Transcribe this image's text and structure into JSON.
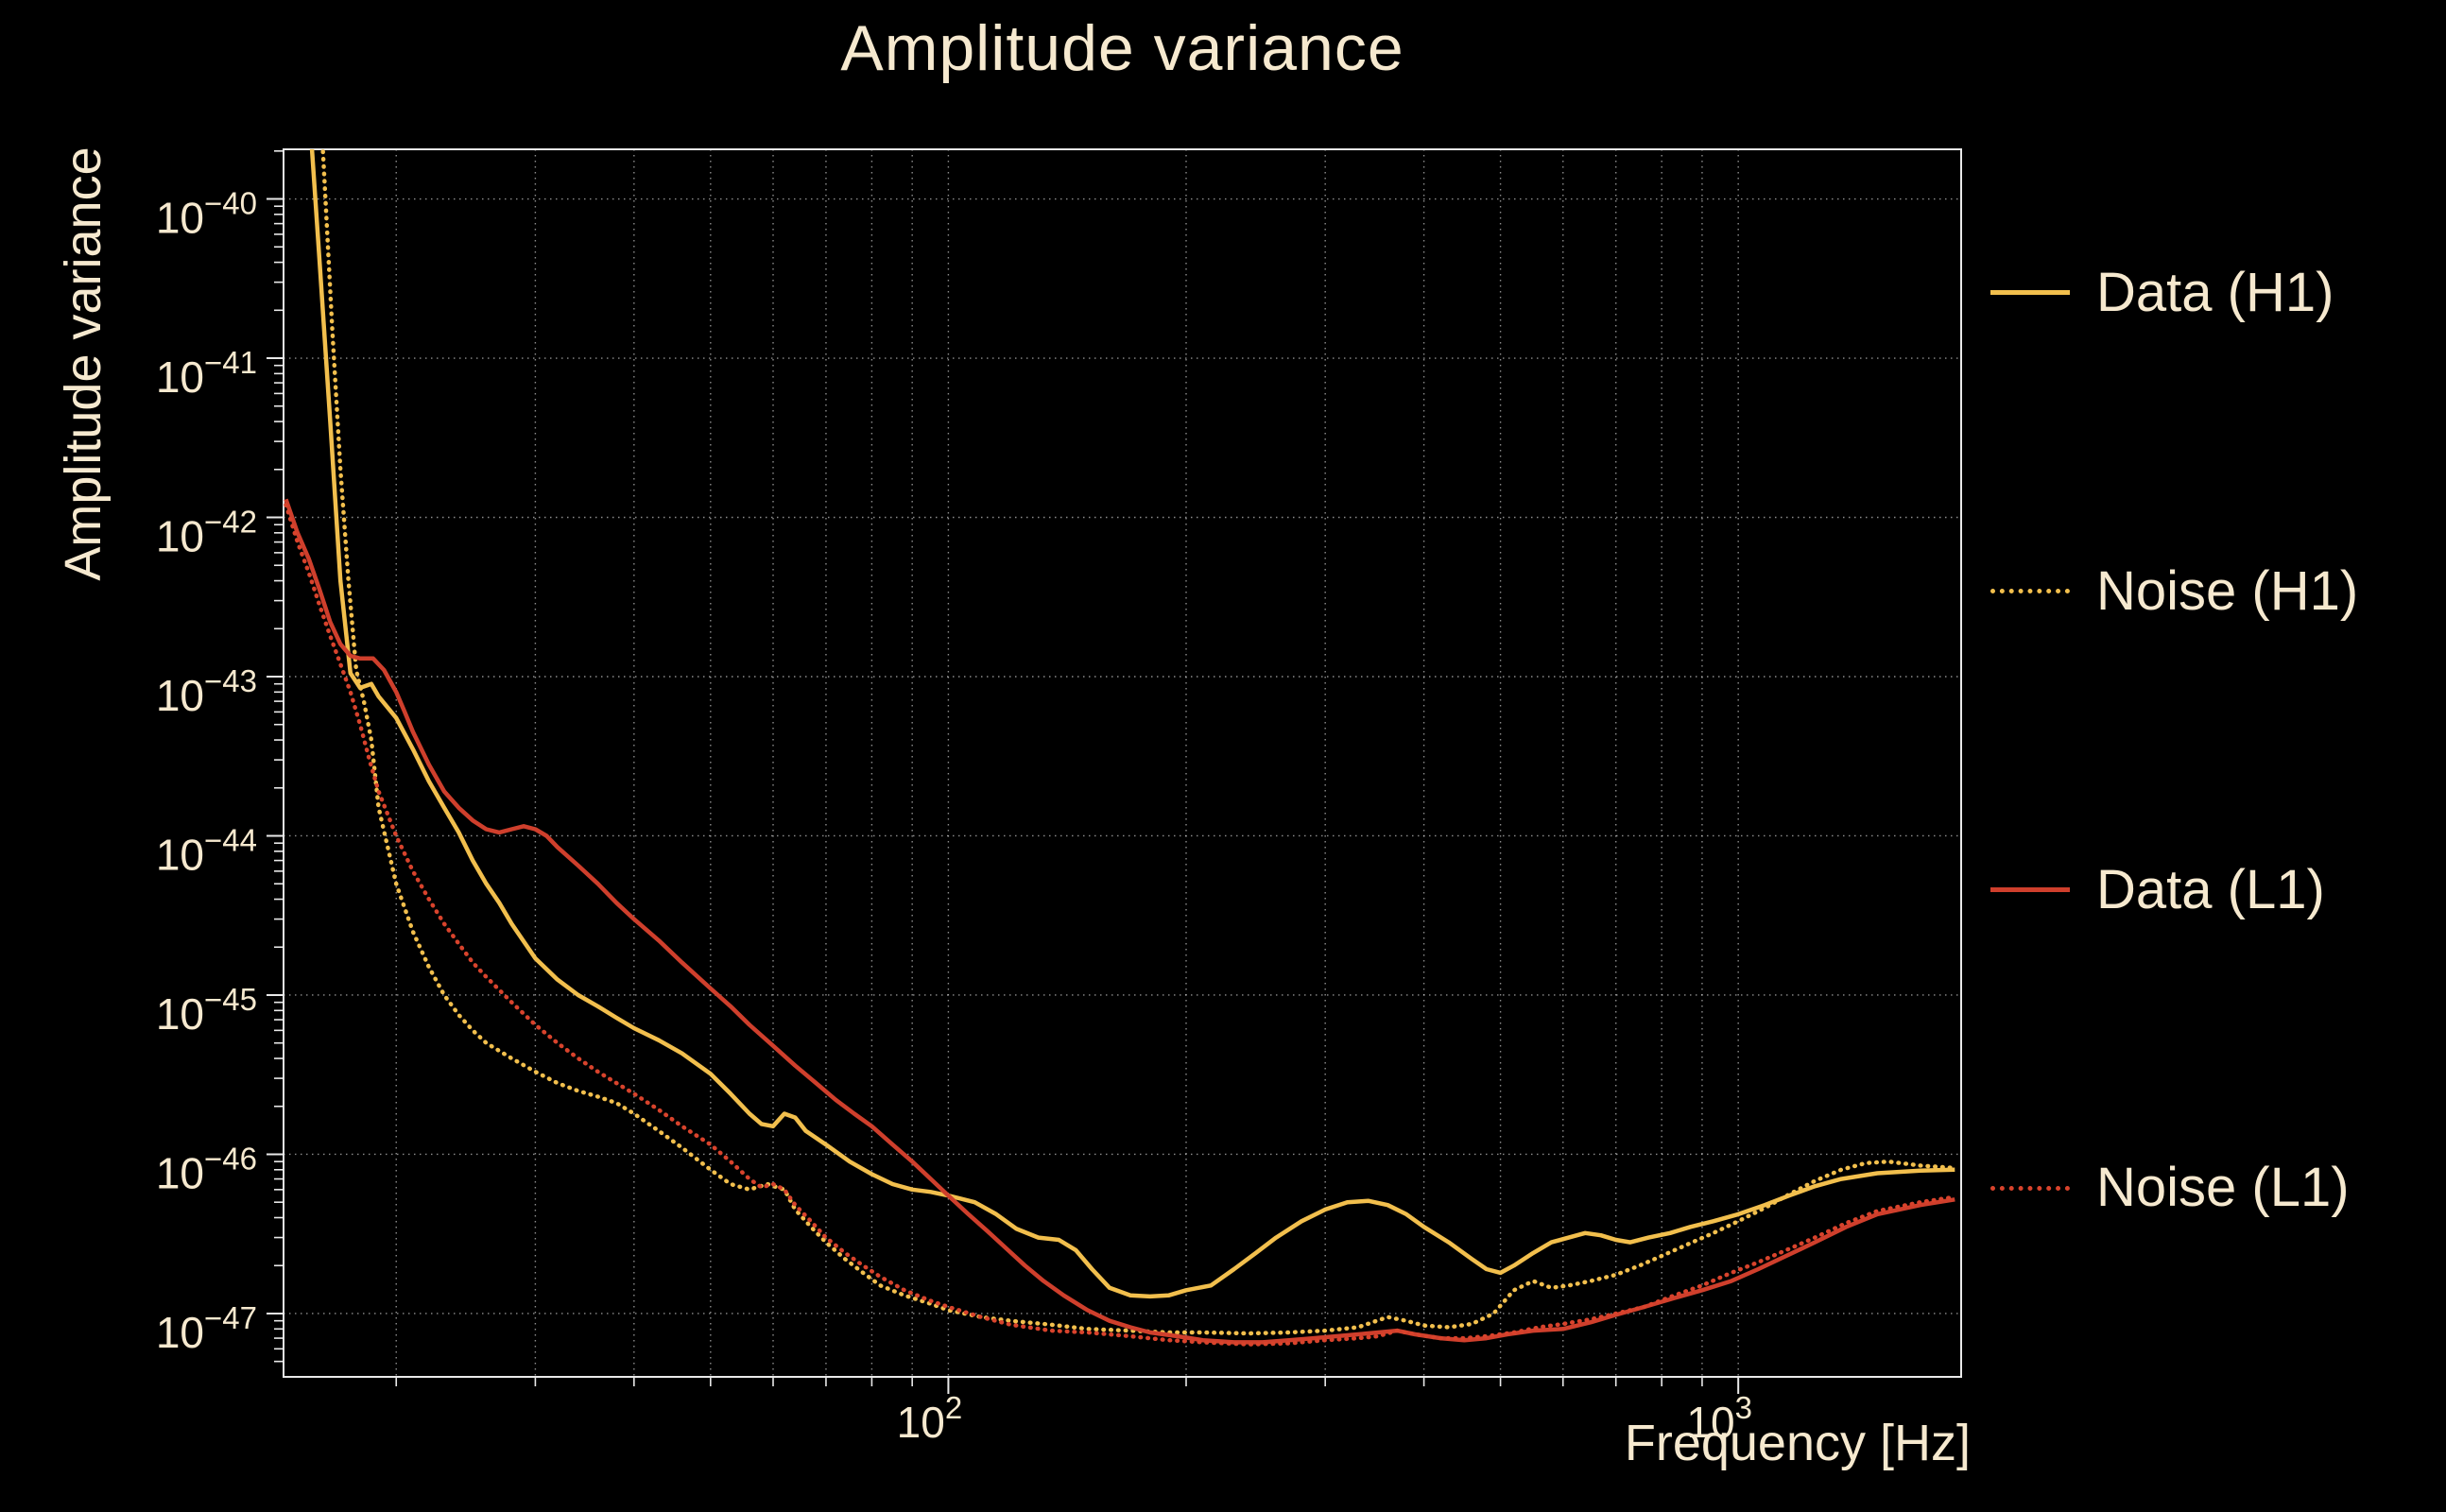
{
  "colors": {
    "background": "#000000",
    "text": "#f6e9cf",
    "grid": "#ffffff",
    "spine": "#e9e9e9",
    "h1": "#f2bf4d",
    "l1": "#cf3f2c"
  },
  "chart_data": {
    "type": "line",
    "title": "Amplitude variance",
    "xlabel": "Frequency [Hz]",
    "ylabel": "Amplitude variance",
    "x_scale": "log",
    "y_scale": "log",
    "xlim": [
      14.4,
      1915
    ],
    "ylim": [
      4e-48,
      2.05e-40
    ],
    "grid": {
      "style": "dotted",
      "x": "all-log-ticks",
      "y": "major-decades"
    },
    "legend_position": "outside-right",
    "x_major_ticks": [
      {
        "value": 100,
        "label": "10^2"
      },
      {
        "value": 1000,
        "label": "10^3"
      }
    ],
    "x_minor_ticks": [
      20,
      30,
      40,
      50,
      60,
      70,
      80,
      90,
      200,
      300,
      400,
      500,
      600,
      700,
      800,
      900
    ],
    "y_major_ticks": [
      {
        "value": 1e-40,
        "label": "10^−40"
      },
      {
        "value": 1e-41,
        "label": "10^−41"
      },
      {
        "value": 1e-42,
        "label": "10^−42"
      },
      {
        "value": 1e-43,
        "label": "10^−43"
      },
      {
        "value": 1e-44,
        "label": "10^−44"
      },
      {
        "value": 1e-45,
        "label": "10^−45"
      },
      {
        "value": 1e-46,
        "label": "10^−46"
      },
      {
        "value": 1e-47,
        "label": "10^−47"
      }
    ],
    "series": [
      {
        "name": "Data (H1)",
        "color": "#f2bf4d",
        "style": "solid",
        "x": [
          15.2,
          15.6,
          16,
          16.5,
          17,
          17.5,
          18,
          18.6,
          19,
          20,
          21,
          22,
          23,
          24,
          25,
          26,
          27,
          28,
          30,
          32,
          34,
          36,
          38,
          40,
          43,
          46,
          50,
          53,
          56,
          58,
          60,
          62,
          64,
          66,
          70,
          75,
          80,
          85,
          90,
          95,
          100,
          108,
          115,
          122,
          130,
          138,
          145,
          152,
          160,
          170,
          180,
          190,
          200,
          215,
          230,
          245,
          260,
          280,
          300,
          320,
          340,
          360,
          380,
          400,
          430,
          460,
          480,
          500,
          520,
          550,
          580,
          610,
          640,
          670,
          700,
          730,
          770,
          820,
          870,
          930,
          1000,
          1080,
          1160,
          1250,
          1350,
          1500,
          1700,
          1880
        ],
        "y": [
          1.5e-39,
          2.5e-40,
          4e-41,
          4e-42,
          4e-43,
          1.05e-43,
          8.5e-44,
          9e-44,
          7.5e-44,
          5.5e-44,
          3.5e-44,
          2.2e-44,
          1.5e-44,
          1.05e-44,
          7e-45,
          5e-45,
          3.8e-45,
          2.8e-45,
          1.7e-45,
          1.25e-45,
          1e-45,
          8.5e-46,
          7.2e-46,
          6.2e-46,
          5.2e-46,
          4.3e-46,
          3.2e-46,
          2.4e-46,
          1.8e-46,
          1.55e-46,
          1.5e-46,
          1.8e-46,
          1.7e-46,
          1.4e-46,
          1.15e-46,
          9e-47,
          7.5e-47,
          6.5e-47,
          6e-47,
          5.8e-47,
          5.5e-47,
          5e-47,
          4.2e-47,
          3.4e-47,
          3e-47,
          2.9e-47,
          2.5e-47,
          1.9e-47,
          1.45e-47,
          1.3e-47,
          1.28e-47,
          1.3e-47,
          1.4e-47,
          1.5e-47,
          1.9e-47,
          2.4e-47,
          3e-47,
          3.8e-47,
          4.5e-47,
          5e-47,
          5.1e-47,
          4.8e-47,
          4.2e-47,
          3.5e-47,
          2.8e-47,
          2.2e-47,
          1.9e-47,
          1.8e-47,
          2e-47,
          2.4e-47,
          2.8e-47,
          3e-47,
          3.2e-47,
          3.1e-47,
          2.9e-47,
          2.8e-47,
          3e-47,
          3.2e-47,
          3.5e-47,
          3.8e-47,
          4.2e-47,
          4.8e-47,
          5.5e-47,
          6.3e-47,
          7e-47,
          7.6e-47,
          7.9e-47,
          8e-47
        ]
      },
      {
        "name": "Noise (H1)",
        "color": "#f2bf4d",
        "style": "dotted",
        "x": [
          15.8,
          16.2,
          16.6,
          17,
          17.4,
          17.8,
          18.2,
          18.6,
          19,
          20,
          21,
          22,
          23,
          24,
          25,
          26,
          28,
          30,
          32,
          34,
          36,
          38,
          40,
          43,
          46,
          50,
          53,
          56,
          59,
          62,
          64,
          67,
          70,
          74,
          78,
          82,
          88,
          95,
          100,
          110,
          120,
          135,
          150,
          170,
          190,
          210,
          240,
          270,
          300,
          330,
          360,
          380,
          400,
          430,
          460,
          490,
          520,
          550,
          580,
          610,
          650,
          700,
          750,
          800,
          860,
          930,
          1000,
          1080,
          1160,
          1250,
          1350,
          1450,
          1550,
          1700,
          1880
        ],
        "y": [
          1.5e-39,
          1.5e-40,
          1.5e-41,
          2e-42,
          4e-43,
          1.1e-43,
          7e-44,
          4e-44,
          1.5e-44,
          5e-45,
          2.5e-45,
          1.5e-45,
          1e-45,
          7.5e-46,
          6e-46,
          5e-46,
          4e-46,
          3.3e-46,
          2.8e-46,
          2.5e-46,
          2.3e-46,
          2.1e-46,
          1.8e-46,
          1.4e-46,
          1.1e-46,
          8e-47,
          6.5e-47,
          6e-47,
          6.5e-47,
          6e-47,
          4.5e-47,
          3.5e-47,
          2.8e-47,
          2.2e-47,
          1.8e-47,
          1.5e-47,
          1.3e-47,
          1.15e-47,
          1.05e-47,
          9.5e-48,
          9e-48,
          8.5e-48,
          8e-48,
          7.8e-48,
          7.6e-48,
          7.6e-48,
          7.5e-48,
          7.6e-48,
          7.8e-48,
          8.2e-48,
          9.5e-48,
          9e-48,
          8.4e-48,
          8.2e-48,
          8.6e-48,
          1e-47,
          1.4e-47,
          1.6e-47,
          1.45e-47,
          1.5e-47,
          1.6e-47,
          1.75e-47,
          2e-47,
          2.3e-47,
          2.7e-47,
          3.2e-47,
          3.8e-47,
          4.6e-47,
          5.6e-47,
          6.8e-47,
          8e-47,
          8.8e-47,
          9e-47,
          8.5e-47,
          8.2e-47
        ]
      },
      {
        "name": "Data (L1)",
        "color": "#cf3f2c",
        "style": "solid",
        "x": [
          14.5,
          15,
          15.5,
          16,
          16.5,
          17,
          17.5,
          18,
          18.7,
          19.3,
          20,
          20.5,
          21,
          22,
          23,
          24,
          25,
          26,
          27,
          28,
          29,
          30,
          31,
          32,
          34,
          36,
          38,
          40,
          43,
          46,
          50,
          53,
          56,
          60,
          64,
          68,
          72,
          76,
          80,
          85,
          90,
          95,
          100,
          106,
          112,
          118,
          125,
          132,
          140,
          150,
          160,
          170,
          180,
          195,
          210,
          230,
          250,
          270,
          290,
          310,
          330,
          350,
          370,
          390,
          420,
          450,
          480,
          510,
          550,
          600,
          650,
          700,
          760,
          830,
          900,
          980,
          1060,
          1150,
          1250,
          1370,
          1500,
          1700,
          1880
        ],
        "y": [
          1.3e-42,
          8e-43,
          5.5e-43,
          3.5e-43,
          2.2e-43,
          1.6e-43,
          1.35e-43,
          1.3e-43,
          1.3e-43,
          1.1e-43,
          8e-44,
          6e-44,
          4.5e-44,
          2.8e-44,
          1.9e-44,
          1.5e-44,
          1.25e-44,
          1.1e-44,
          1.05e-44,
          1.1e-44,
          1.15e-44,
          1.1e-44,
          1e-44,
          8.5e-45,
          6.5e-45,
          5e-45,
          3.8e-45,
          3e-45,
          2.2e-45,
          1.6e-45,
          1.1e-45,
          8.5e-46,
          6.5e-46,
          4.8e-46,
          3.6e-46,
          2.8e-46,
          2.2e-46,
          1.8e-46,
          1.5e-46,
          1.15e-46,
          9e-47,
          7e-47,
          5.5e-47,
          4.2e-47,
          3.3e-47,
          2.6e-47,
          2e-47,
          1.6e-47,
          1.3e-47,
          1.05e-47,
          9e-48,
          8.2e-48,
          7.6e-48,
          7.2e-48,
          6.8e-48,
          6.6e-48,
          6.6e-48,
          6.8e-48,
          7e-48,
          7.2e-48,
          7.4e-48,
          7.6e-48,
          7.8e-48,
          7.4e-48,
          7e-48,
          6.8e-48,
          7e-48,
          7.4e-48,
          7.8e-48,
          8e-48,
          8.8e-48,
          9.8e-48,
          1.1e-47,
          1.25e-47,
          1.4e-47,
          1.6e-47,
          1.9e-47,
          2.3e-47,
          2.8e-47,
          3.5e-47,
          4.2e-47,
          4.8e-47,
          5.2e-47
        ]
      },
      {
        "name": "Noise (L1)",
        "color": "#d8432c",
        "style": "dotted",
        "x": [
          14.5,
          15,
          15.5,
          16,
          16.5,
          17,
          17.5,
          18,
          18.5,
          19,
          20,
          21,
          22,
          23,
          24,
          25,
          26,
          28,
          30,
          32,
          34,
          36,
          38,
          40,
          43,
          46,
          50,
          53,
          56,
          58,
          60,
          62,
          64,
          67,
          70,
          74,
          78,
          82,
          88,
          95,
          100,
          110,
          120,
          135,
          150,
          170,
          190,
          210,
          240,
          270,
          300,
          330,
          350,
          370,
          390,
          420,
          450,
          480,
          520,
          560,
          600,
          650,
          700,
          760,
          830,
          900,
          980,
          1060,
          1150,
          1250,
          1370,
          1500,
          1700,
          1880
        ],
        "y": [
          1.2e-42,
          7e-43,
          4.5e-43,
          2.8e-43,
          1.8e-43,
          1.2e-43,
          8e-44,
          5e-44,
          3e-44,
          1.9e-44,
          1e-44,
          6e-45,
          4e-45,
          2.8e-45,
          2.1e-45,
          1.6e-45,
          1.3e-45,
          9e-46,
          6.5e-46,
          5e-46,
          4e-46,
          3.3e-46,
          2.8e-46,
          2.4e-46,
          1.9e-46,
          1.5e-46,
          1.15e-46,
          9e-47,
          7e-47,
          6.2e-47,
          6.5e-47,
          6e-47,
          4.8e-47,
          3.8e-47,
          3e-47,
          2.4e-47,
          2e-47,
          1.7e-47,
          1.4e-47,
          1.2e-47,
          1.1e-47,
          9.5e-48,
          8.5e-48,
          7.8e-48,
          7.6e-48,
          7.2e-48,
          6.8e-48,
          6.6e-48,
          6.4e-48,
          6.5e-48,
          6.8e-48,
          7e-48,
          7.2e-48,
          7.8e-48,
          7.4e-48,
          7e-48,
          7e-48,
          7.2e-48,
          7.6e-48,
          8.2e-48,
          8.6e-48,
          9.2e-48,
          1e-47,
          1.1e-47,
          1.3e-47,
          1.5e-47,
          1.8e-47,
          2.1e-47,
          2.5e-47,
          3e-47,
          3.7e-47,
          4.4e-47,
          5e-47,
          5.4e-47
        ]
      }
    ]
  }
}
